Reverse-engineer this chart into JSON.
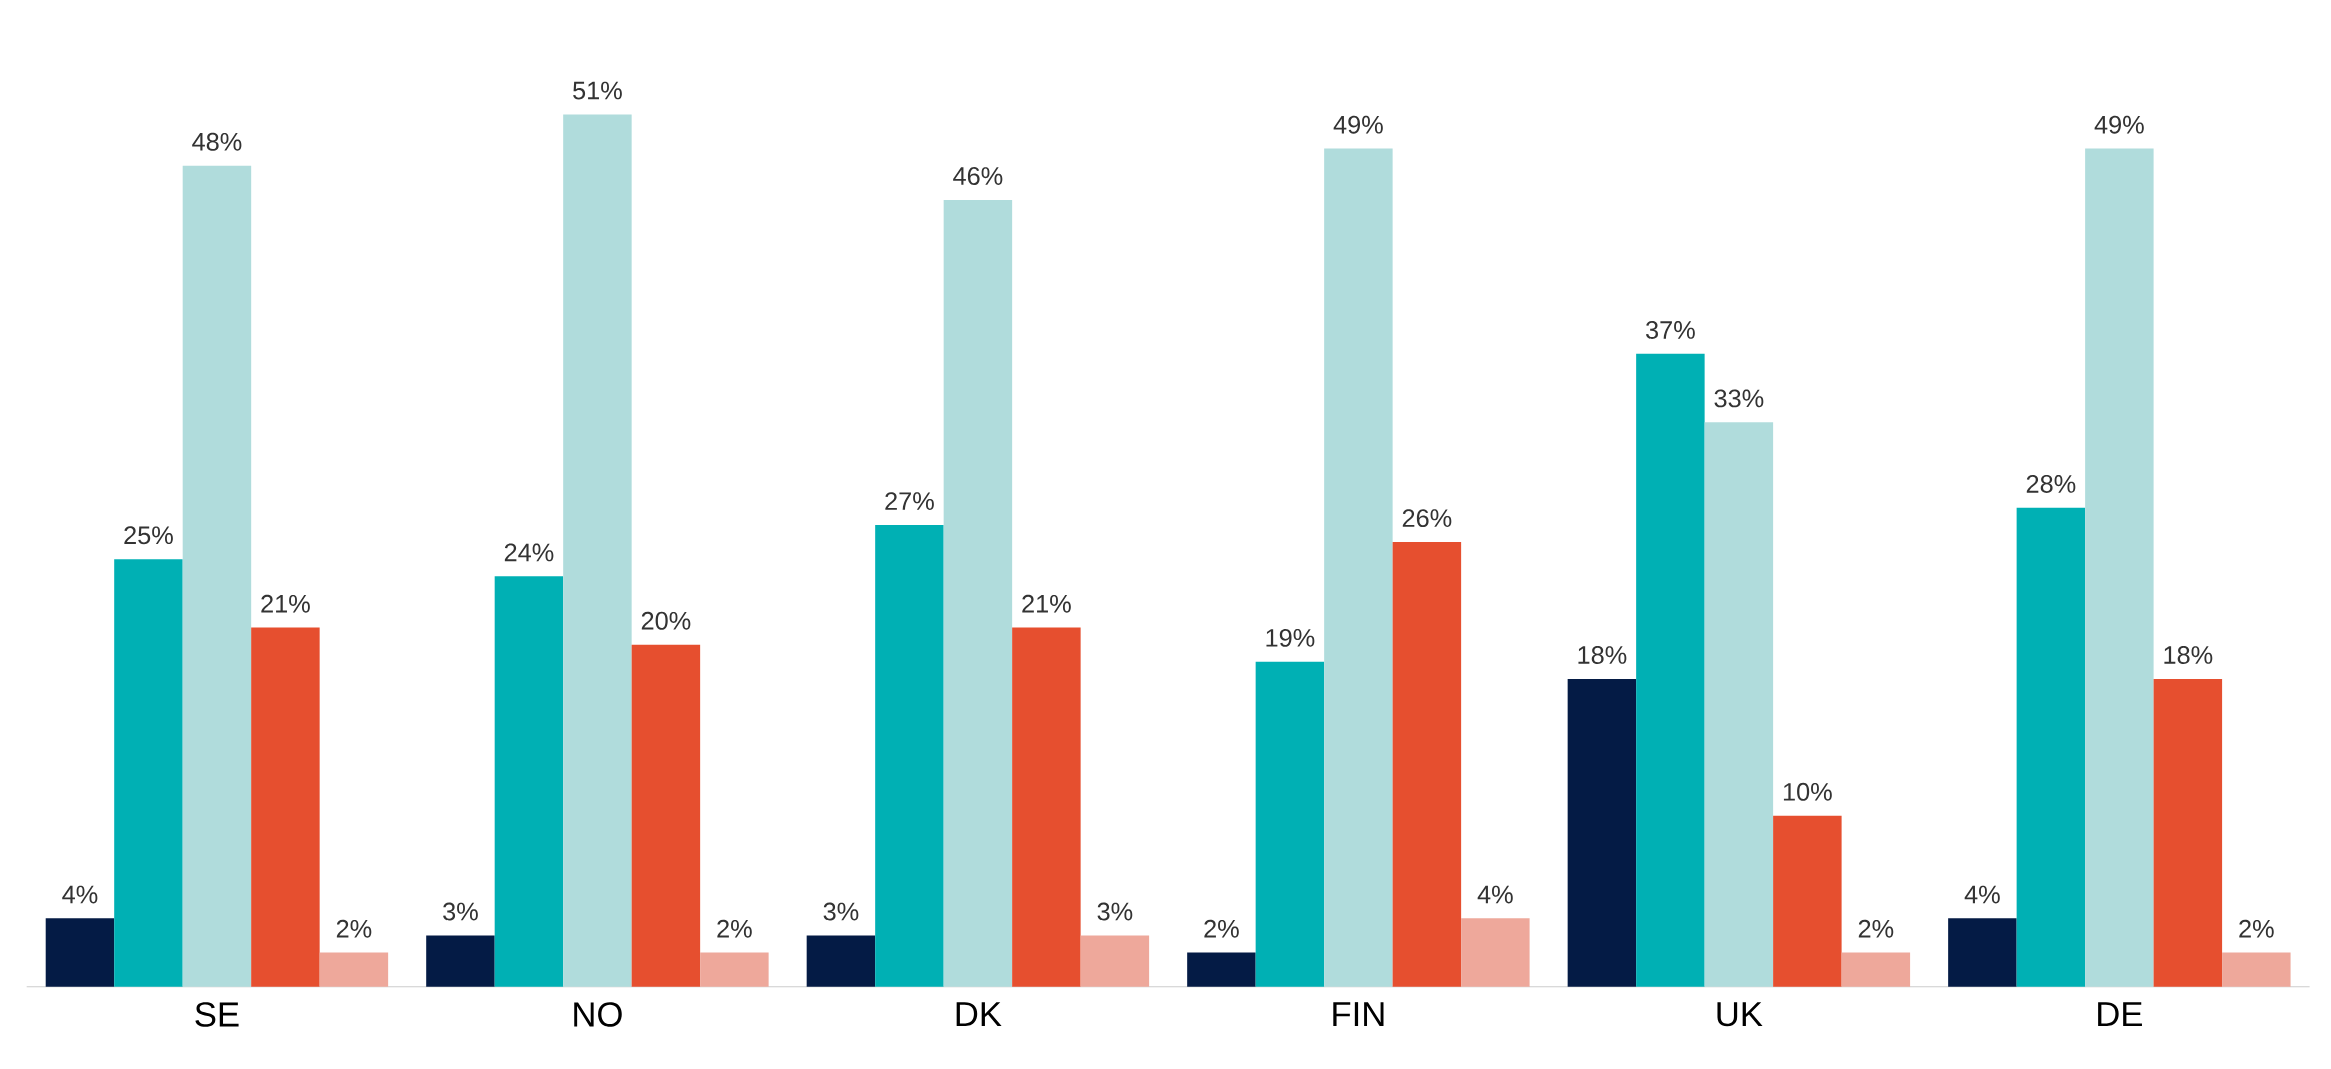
{
  "chart_data": {
    "type": "bar",
    "categories": [
      "SE",
      "NO",
      "DK",
      "FIN",
      "UK",
      "DE"
    ],
    "series": [
      {
        "color": "#041b45",
        "values": [
          4,
          3,
          3,
          2,
          18,
          4
        ],
        "value_labels": [
          "4%",
          "3%",
          "3%",
          "2%",
          "18%",
          "4%"
        ]
      },
      {
        "color": "#00b0b4",
        "values": [
          25,
          24,
          27,
          19,
          37,
          28
        ],
        "value_labels": [
          "25%",
          "24%",
          "27%",
          "19%",
          "37%",
          "28%"
        ]
      },
      {
        "color": "#b0dcdc",
        "values": [
          48,
          51,
          46,
          49,
          33,
          49
        ],
        "value_labels": [
          "48%",
          "51%",
          "46%",
          "49%",
          "33%",
          "49%"
        ]
      },
      {
        "color": "#e64f2f",
        "values": [
          21,
          20,
          21,
          26,
          10,
          18
        ],
        "value_labels": [
          "21%",
          "20%",
          "21%",
          "26%",
          "10%",
          "18%"
        ]
      },
      {
        "color": "#eea89b",
        "values": [
          2,
          2,
          3,
          4,
          2,
          2
        ],
        "value_labels": [
          "2%",
          "2%",
          "3%",
          "4%",
          "2%",
          "2%"
        ]
      }
    ]
  }
}
